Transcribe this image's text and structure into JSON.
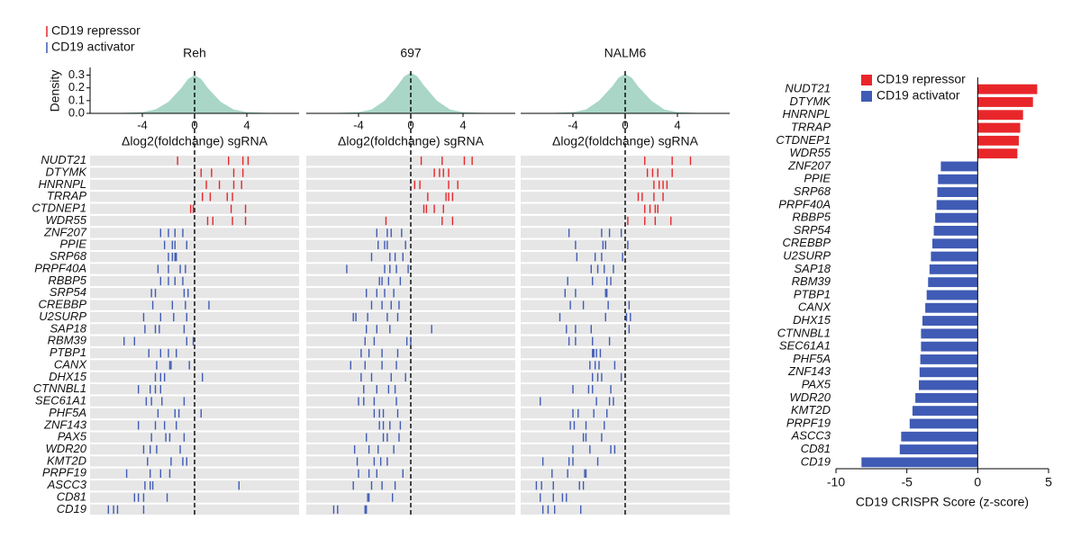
{
  "legend": {
    "items": [
      {
        "name": "CD19 repressor",
        "color": "#e8262a"
      },
      {
        "name": "CD19 activator",
        "color": "#3f5bb5"
      }
    ]
  },
  "chart_data": [
    {
      "type": "strip",
      "title": "Reh",
      "xlabel": "Δlog2(foldchange) sgRNA",
      "xlim": [
        -8,
        8
      ],
      "xticks": [
        -4,
        0,
        4
      ],
      "density": {
        "ylabel": "Density",
        "color": "#a9d6c6",
        "ylim": [
          0,
          0.36
        ],
        "yticks": [
          {
            "value": 0,
            "label": "0.0"
          },
          0.1,
          0.2,
          0.3
        ],
        "x": [
          -8,
          -6,
          -4,
          -3,
          -2,
          -1,
          -0.5,
          0,
          0.5,
          1,
          2,
          3,
          4,
          6,
          8
        ],
        "values": [
          0,
          0.002,
          0.01,
          0.03,
          0.09,
          0.2,
          0.27,
          0.3,
          0.27,
          0.2,
          0.09,
          0.03,
          0.01,
          0.002,
          0
        ]
      },
      "categories": [
        "NUDT21",
        "DTYMK",
        "HNRNPL",
        "TRRAP",
        "CTDNEP1",
        "WDR55",
        "ZNF207",
        "PPIE",
        "SRP68",
        "PRPF40A",
        "RBBP5",
        "SRP54",
        "CREBBP",
        "U2SURP",
        "SAP18",
        "RBM39",
        "PTBP1",
        "CANX",
        "DHX15",
        "CTNNBL1",
        "SEC61A1",
        "PHF5A",
        "ZNF143",
        "PAX5",
        "WDR20",
        "KMT2D",
        "PRPF19",
        "ASCC3",
        "CD81",
        "CD19"
      ],
      "series": [
        {
          "color": "#e8262a",
          "values": [
            [
              -1.3,
              2.6,
              3.7,
              4.1
            ],
            [
              0.5,
              1.3,
              3.0,
              3.7
            ],
            [
              0.9,
              1.9,
              3.0,
              3.6
            ],
            [
              0.6,
              1.2,
              2.5,
              2.9
            ],
            [
              -0.3,
              -0.1,
              2.8,
              3.9
            ],
            [
              1.0,
              1.4,
              2.9,
              3.9
            ],
            null,
            null,
            null,
            null,
            null,
            null,
            null,
            null,
            null,
            null,
            null,
            null,
            null,
            null,
            null,
            null,
            null,
            null,
            null,
            null,
            null,
            null,
            null,
            null
          ]
        },
        {
          "color": "#3f5bb5",
          "values": [
            null,
            null,
            null,
            null,
            null,
            null,
            [
              -2.6,
              -2.0,
              -1.5,
              -0.9
            ],
            [
              -2.3,
              -1.7,
              -1.5,
              -0.6
            ],
            [
              -2.0,
              -1.7,
              -1.5,
              -1.4
            ],
            [
              -2.8,
              -2.0,
              -1.1,
              -0.7
            ],
            [
              -2.6,
              -2.0,
              -1.5,
              -0.9
            ],
            [
              -3.3,
              -3.0,
              -0.8,
              -0.5
            ],
            [
              -3.2,
              -1.7,
              -0.7,
              1.1
            ],
            [
              -3.9,
              -2.6,
              -1.6,
              -0.6
            ],
            [
              -3.8,
              -3.0,
              -2.7,
              -0.8
            ],
            [
              -5.4,
              -4.6,
              -0.6,
              -0.1
            ],
            [
              -3.5,
              -2.6,
              -2.0,
              -1.4
            ],
            [
              -2.9,
              -1.9,
              -1.8,
              -0.4
            ],
            [
              -3.0,
              -2.6,
              -2.3,
              0.6
            ],
            [
              -4.3,
              -3.4,
              -3.0,
              -2.6
            ],
            [
              -3.7,
              -3.3,
              -2.5,
              -0.8
            ],
            [
              -2.8,
              -1.5,
              -1.2,
              0.5
            ],
            [
              -4.3,
              -3.0,
              -2.3,
              -1.4
            ],
            [
              -3.3,
              -2.2,
              -1.9,
              -0.8
            ],
            [
              -3.9,
              -3.4,
              -2.9,
              -1.1
            ],
            [
              -3.6,
              -1.8,
              -0.9,
              -0.6
            ],
            [
              -5.2,
              -3.4,
              -2.6,
              -1.9
            ],
            [
              -3.8,
              -3.4,
              -3.2,
              3.4
            ],
            [
              -4.6,
              -4.3,
              -3.9,
              -2.1
            ],
            [
              -6.6,
              -6.2,
              -5.9,
              -3.9
            ]
          ]
        }
      ]
    },
    {
      "type": "strip",
      "title": "697",
      "xlabel": "Δlog2(foldchange) sgRNA",
      "xlim": [
        -8,
        8
      ],
      "xticks": [
        -4,
        0,
        4
      ],
      "density": {
        "color": "#a9d6c6",
        "ylim": [
          0,
          0.36
        ],
        "x": [
          -8,
          -6,
          -4,
          -3,
          -2,
          -1,
          -0.5,
          0,
          0.5,
          1,
          2,
          3,
          4,
          6,
          8
        ],
        "values": [
          0,
          0.002,
          0.01,
          0.03,
          0.1,
          0.22,
          0.29,
          0.32,
          0.29,
          0.22,
          0.1,
          0.03,
          0.01,
          0.002,
          0
        ]
      },
      "series": [
        {
          "color": "#e8262a",
          "values": [
            [
              0.8,
              2.4,
              4.1,
              4.7
            ],
            [
              1.8,
              2.2,
              2.5,
              2.9
            ],
            [
              0.3,
              0.7,
              2.9,
              3.6
            ],
            [
              1.3,
              2.7,
              2.9,
              3.2
            ],
            [
              1.0,
              1.2,
              1.8,
              2.5
            ],
            [
              -1.9,
              2.4,
              3.2
            ],
            null,
            null,
            null,
            null,
            null,
            null,
            null,
            null,
            null,
            null,
            null,
            null,
            null,
            null,
            null,
            null,
            null,
            null,
            null,
            null,
            null,
            null,
            null,
            null
          ]
        },
        {
          "color": "#3f5bb5",
          "values": [
            null,
            null,
            null,
            null,
            null,
            null,
            [
              -2.6,
              -1.8,
              -1.5,
              -0.7
            ],
            [
              -2.5,
              -2.0,
              -1.8,
              -0.4
            ],
            [
              -3.0,
              -1.6,
              -1.2,
              -0.6
            ],
            [
              -4.9,
              -2.0,
              -1.6,
              -1.1,
              -0.2
            ],
            [
              -2.4,
              -2.2,
              -1.7,
              -0.8
            ],
            [
              -3.4,
              -2.6,
              -2.0,
              -1.3
            ],
            [
              -3.0,
              -2.2,
              -1.5,
              -0.9
            ],
            [
              -4.4,
              -4.2,
              -3.3,
              -1.8,
              -1.0
            ],
            [
              -3.4,
              -2.6,
              -1.6,
              1.6
            ],
            [
              -3.5,
              -2.8,
              -0.3,
              0
            ],
            [
              -3.8,
              -3.2,
              -2.2,
              -1.0
            ],
            [
              -4.6,
              -3.5,
              -2.2,
              -1.1
            ],
            [
              -3.8,
              -3.0,
              -1.5,
              -0.4
            ],
            [
              -3.6,
              -2.6,
              -1.7,
              -1.2
            ],
            [
              -4.0,
              -3.6,
              -2.8,
              -1.1
            ],
            [
              -2.8,
              -2.4,
              -2.1,
              -1.0
            ],
            [
              -2.4,
              -2.1,
              -1.6,
              -0.8
            ],
            [
              -3.4,
              -2.1,
              -1.8,
              -0.9
            ],
            [
              -4.3,
              -3.2,
              -2.5,
              -1.3
            ],
            [
              -4.1,
              -2.8,
              -2.3,
              -1.8
            ],
            [
              -4.0,
              -3.2,
              -2.6,
              -0.6
            ],
            [
              -4.4,
              -3.0,
              -2.2,
              -1.2
            ],
            [
              -3.3,
              -3.2,
              -1.4
            ],
            [
              -5.9,
              -5.6,
              -3.5,
              -3.4
            ]
          ]
        }
      ]
    },
    {
      "type": "strip",
      "title": "NALM6",
      "xlabel": "Δlog2(foldchange) sgRNA",
      "xlim": [
        -8,
        8
      ],
      "xticks": [
        -4,
        0,
        4
      ],
      "density": {
        "color": "#a9d6c6",
        "ylim": [
          0,
          0.36
        ],
        "x": [
          -8,
          -6,
          -4,
          -3,
          -2,
          -1,
          -0.5,
          0,
          0.5,
          1,
          2,
          3,
          4,
          6,
          8
        ],
        "values": [
          0,
          0.002,
          0.01,
          0.03,
          0.1,
          0.21,
          0.28,
          0.31,
          0.28,
          0.21,
          0.1,
          0.03,
          0.01,
          0.002,
          0
        ]
      },
      "series": [
        {
          "color": "#e8262a",
          "values": [
            [
              1.5,
              3.6,
              5.0
            ],
            [
              1.7,
              2.1,
              2.5,
              3.6
            ],
            [
              2.2,
              2.6,
              2.9,
              3.2
            ],
            [
              1.0,
              1.3,
              2.2,
              2.9
            ],
            [
              1.5,
              1.9,
              2.3,
              2.5
            ],
            [
              0.2,
              1.5,
              2.3,
              3.5
            ],
            null,
            null,
            null,
            null,
            null,
            null,
            null,
            null,
            null,
            null,
            null,
            null,
            null,
            null,
            null,
            null,
            null,
            null,
            null,
            null,
            null,
            null,
            null,
            null
          ]
        },
        {
          "color": "#3f5bb5",
          "values": [
            null,
            null,
            null,
            null,
            null,
            null,
            [
              -4.3,
              -1.8,
              -1.2,
              -0.3
            ],
            [
              -3.8,
              -1.7,
              -1.5,
              0.2
            ],
            [
              -3.7,
              -2.3,
              -1.8,
              -0.2
            ],
            [
              -2.6,
              -2.1,
              -1.6,
              -0.9
            ],
            [
              -4.4,
              -2.5,
              -1.4,
              -1.1
            ],
            [
              -4.6,
              -3.8,
              -1.5,
              -1.4
            ],
            [
              -4.2,
              -3.2,
              -1.3,
              0.3
            ],
            [
              -5.0,
              -1.5,
              0.1,
              0.4
            ],
            [
              -4.5,
              -3.8,
              -2.6,
              0.3
            ],
            [
              -4.3,
              -3.8,
              -2.5,
              -1.2
            ],
            [
              -2.5,
              -2.4,
              -2.2,
              -1.9
            ],
            [
              -2.7,
              -2.3,
              -2.0,
              -0.8
            ],
            [
              -2.5,
              -2.1,
              -1.8,
              -0.3
            ],
            [
              -4.0,
              -2.8,
              -2.5,
              -1.1
            ],
            [
              -6.5,
              -2.2,
              -1.2,
              -0.9
            ],
            [
              -4.0,
              -3.6,
              -2.4,
              -1.4
            ],
            [
              -4.2,
              -3.9,
              -3.0,
              -1.6
            ],
            [
              -3.2,
              -3.0,
              -1.8
            ],
            [
              -4.0,
              -2.7,
              -1.1,
              -0.8
            ],
            [
              -6.3,
              -4.3,
              -4.0,
              -2.1
            ],
            [
              -5.6,
              -4.4,
              -3.1,
              -3.0
            ],
            [
              -6.8,
              -6.4,
              -5.5,
              -3.5,
              -3.2
            ],
            [
              -6.5,
              -5.5,
              -4.8,
              -4.5
            ],
            [
              -6.3,
              -5.9,
              -5.4,
              -3.4
            ]
          ]
        }
      ]
    },
    {
      "type": "bar",
      "xlabel": "CD19 CRISPR Score (z-score)",
      "xlim": [
        -10,
        5
      ],
      "xticks": [
        -10,
        -5,
        0,
        5
      ],
      "categories": [
        "NUDT21",
        "DTYMK",
        "HNRNPL",
        "TRRAP",
        "CTDNEP1",
        "WDR55",
        "ZNF207",
        "PPIE",
        "SRP68",
        "PRPF40A",
        "RBBP5",
        "SRP54",
        "CREBBP",
        "U2SURP",
        "SAP18",
        "RBM39",
        "PTBP1",
        "CANX",
        "DHX15",
        "CTNNBL1",
        "SEC61A1",
        "PHF5A",
        "ZNF143",
        "PAX5",
        "WDR20",
        "KMT2D",
        "PRPF19",
        "ASCC3",
        "CD81",
        "CD19"
      ],
      "series": [
        {
          "name": "CD19 repressor",
          "color": "#e8262a",
          "values": [
            4.2,
            3.9,
            3.2,
            3.0,
            2.9,
            2.8,
            null,
            null,
            null,
            null,
            null,
            null,
            null,
            null,
            null,
            null,
            null,
            null,
            null,
            null,
            null,
            null,
            null,
            null,
            null,
            null,
            null,
            null,
            null,
            null
          ]
        },
        {
          "name": "CD19 activator",
          "color": "#3f5bb5",
          "values": [
            null,
            null,
            null,
            null,
            null,
            null,
            -2.6,
            -2.8,
            -2.85,
            -2.9,
            -3.0,
            -3.1,
            -3.2,
            -3.3,
            -3.4,
            -3.5,
            -3.6,
            -3.7,
            -3.9,
            -4.0,
            -4.0,
            -4.05,
            -4.1,
            -4.15,
            -4.4,
            -4.6,
            -4.8,
            -5.4,
            -5.5,
            -8.2
          ]
        }
      ]
    }
  ]
}
